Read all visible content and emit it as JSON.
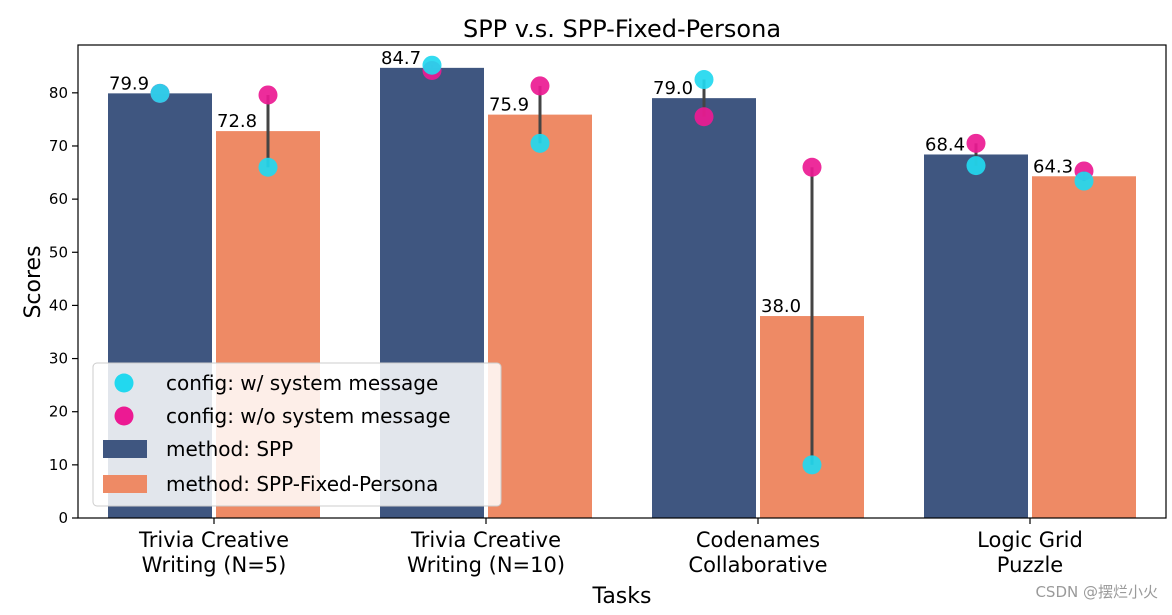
{
  "chart_data": {
    "type": "bar",
    "title": "SPP v.s. SPP-Fixed-Persona",
    "xlabel": "Tasks",
    "ylabel": "Scores",
    "ylim": [
      0,
      89
    ],
    "yticks": [
      0,
      10,
      20,
      30,
      40,
      50,
      60,
      70,
      80
    ],
    "grid": false,
    "categories": [
      [
        "Trivia Creative",
        "Writing (N=5)"
      ],
      [
        "Trivia Creative",
        "Writing (N=10)"
      ],
      [
        "Codenames",
        "Collaborative"
      ],
      [
        "Logic Grid",
        "Puzzle"
      ]
    ],
    "series": [
      {
        "name": "method: SPP",
        "color": "#3f5680",
        "values": [
          79.9,
          84.7,
          79.0,
          68.4
        ],
        "labels": [
          "79.9",
          "84.7",
          "79.0",
          "68.4"
        ]
      },
      {
        "name": "method: SPP-Fixed-Persona",
        "color": "#ee8a65",
        "values": [
          72.8,
          75.9,
          38.0,
          64.3
        ],
        "labels": [
          "72.8",
          "75.9",
          "38.0",
          "64.3"
        ]
      }
    ],
    "points": [
      {
        "name": "config: w/ system message",
        "color": "#22d8ef",
        "spp": [
          79.9,
          85.2,
          82.5,
          66.3
        ],
        "fixed": [
          66.0,
          70.5,
          10.0,
          63.4
        ]
      },
      {
        "name": "config: w/o system message",
        "color": "#ec1a93",
        "spp": [
          79.9,
          84.2,
          75.5,
          70.5
        ],
        "fixed": [
          79.6,
          81.3,
          66.0,
          65.3
        ]
      }
    ],
    "legend_position": "lower-left"
  },
  "watermark": "CSDN @摆烂小火"
}
